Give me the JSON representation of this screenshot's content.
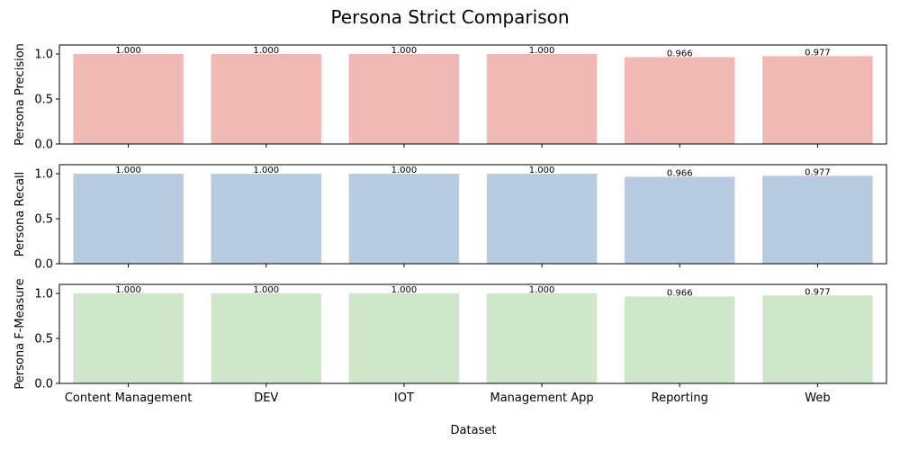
{
  "chart_data": {
    "type": "bar",
    "title": "Persona Strict Comparison",
    "xlabel": "Dataset",
    "categories": [
      "Content Management",
      "DEV",
      "IOT",
      "Management App",
      "Reporting",
      "Web"
    ],
    "ylim": [
      0,
      1.1
    ],
    "yticks": [
      0.0,
      0.5,
      1.0
    ],
    "ytick_labels": [
      "0.0",
      "0.5",
      "1.0"
    ],
    "grid": false,
    "series": [
      {
        "ylabel": "Persona Precision",
        "color": "#f0b9b6",
        "values": [
          1.0,
          1.0,
          1.0,
          1.0,
          0.966,
          0.977
        ],
        "labels": [
          "1.000",
          "1.000",
          "1.000",
          "1.000",
          "0.966",
          "0.977"
        ]
      },
      {
        "ylabel": "Persona Recall",
        "color": "#b9cbdf",
        "values": [
          1.0,
          1.0,
          1.0,
          1.0,
          0.966,
          0.977
        ],
        "labels": [
          "1.000",
          "1.000",
          "1.000",
          "1.000",
          "0.966",
          "0.977"
        ]
      },
      {
        "ylabel": "Persona F-Measure",
        "color": "#cfe6cb",
        "values": [
          1.0,
          1.0,
          1.0,
          1.0,
          0.966,
          0.977
        ],
        "labels": [
          "1.000",
          "1.000",
          "1.000",
          "1.000",
          "0.966",
          "0.977"
        ]
      }
    ]
  }
}
